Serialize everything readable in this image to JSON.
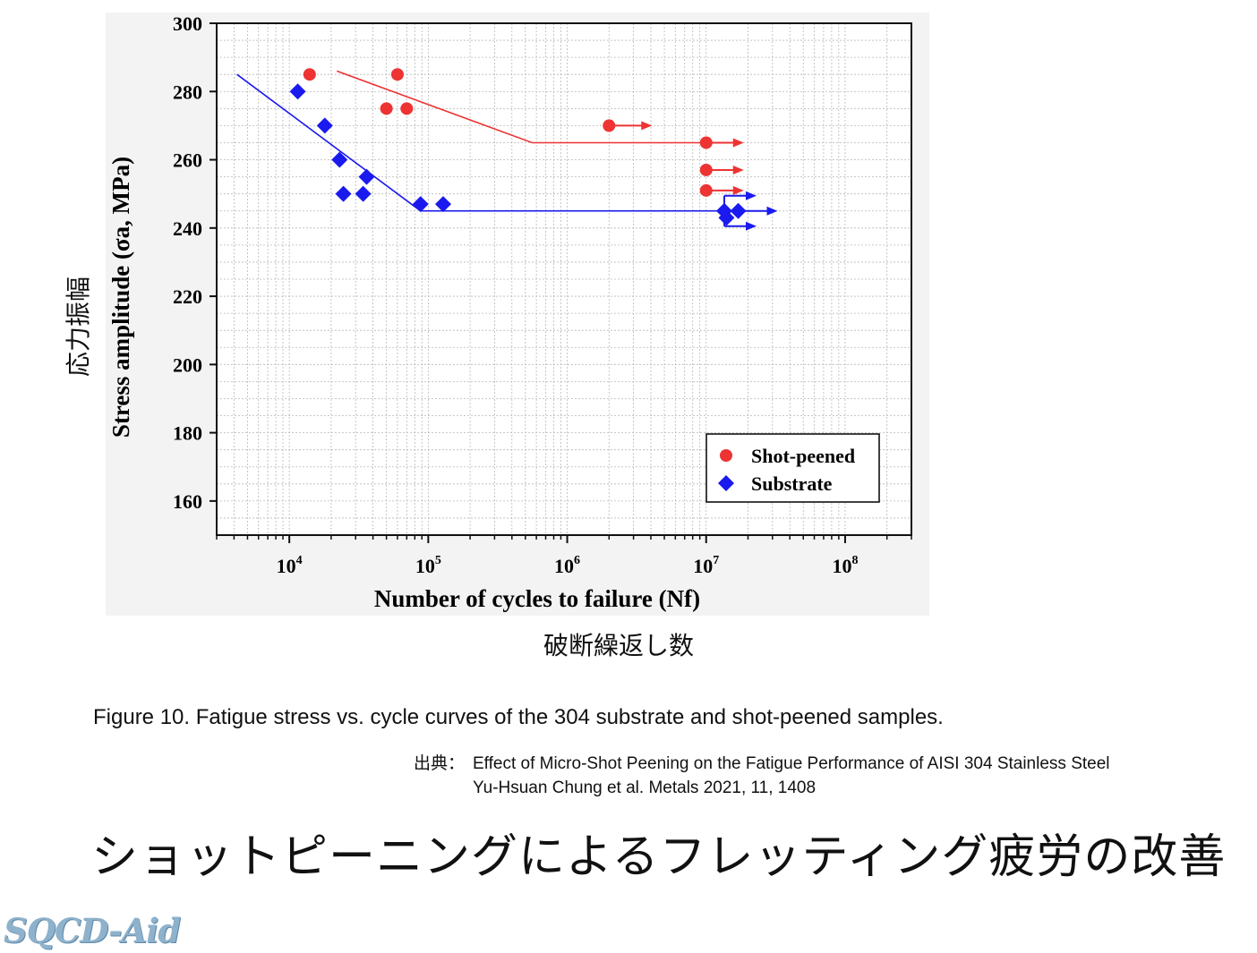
{
  "japanese_labels": {
    "y_axis": "応力振幅",
    "x_axis": "破断繰返し数"
  },
  "caption": "Figure 10. Fatigue stress vs. cycle curves of the 304 substrate and shot-peened samples.",
  "source": {
    "prefix": "出典：",
    "line1": "Effect of Micro-Shot Peening on the Fatigue Performance of AISI 304 Stainless Steel",
    "line2": "Yu-Hsuan  Chung  et al.    Metals 2021, 11, 1408"
  },
  "slide_title": "ショットピーニングによるフレッティング疲労の改善",
  "logo_text": "SQCD-Aid",
  "colors": {
    "shot_peened": "#ee3333",
    "substrate": "#1a1aee",
    "panel_background": "#f3f3f3"
  },
  "chart_data": {
    "type": "scatter",
    "xlabel": "Number of cycles to failure (Nf)",
    "ylabel": "Stress amplitude (σa, MPa)",
    "x_scale": "log",
    "xlim": [
      3000,
      300000000
    ],
    "ylim": [
      150,
      300
    ],
    "x_ticks": [
      {
        "value": 10000,
        "base": "10",
        "exp": "4"
      },
      {
        "value": 100000,
        "base": "10",
        "exp": "5"
      },
      {
        "value": 1000000,
        "base": "10",
        "exp": "6"
      },
      {
        "value": 10000000,
        "base": "10",
        "exp": "7"
      },
      {
        "value": 100000000,
        "base": "10",
        "exp": "8"
      }
    ],
    "y_ticks": [
      160,
      180,
      200,
      220,
      240,
      260,
      280,
      300
    ],
    "grid": true,
    "legend_position": "bottom-right",
    "series": [
      {
        "name": "Shot-peened",
        "marker": "circle",
        "color": "#ee3333",
        "points": [
          {
            "x": 14000,
            "y": 285
          },
          {
            "x": 60000,
            "y": 285
          },
          {
            "x": 50000,
            "y": 275
          },
          {
            "x": 70000,
            "y": 275
          },
          {
            "x": 2000000,
            "y": 270,
            "runout": true
          },
          {
            "x": 10000000,
            "y": 265,
            "runout": true
          },
          {
            "x": 10000000,
            "y": 257,
            "runout": true
          },
          {
            "x": 10000000,
            "y": 251,
            "runout": true
          }
        ],
        "fit_line": [
          {
            "x": 22000,
            "y": 286
          },
          {
            "x": 560000,
            "y": 265
          },
          {
            "x": 10000000,
            "y": 265
          }
        ]
      },
      {
        "name": "Substrate",
        "marker": "diamond",
        "color": "#1a1aee",
        "points": [
          {
            "x": 11500,
            "y": 280
          },
          {
            "x": 18000,
            "y": 270
          },
          {
            "x": 23000,
            "y": 260
          },
          {
            "x": 36000,
            "y": 255
          },
          {
            "x": 24500,
            "y": 250
          },
          {
            "x": 34000,
            "y": 250
          },
          {
            "x": 88000,
            "y": 247
          },
          {
            "x": 128000,
            "y": 247
          },
          {
            "x": 13500000,
            "y": 245,
            "runout": true
          },
          {
            "x": 17000000,
            "y": 245,
            "runout": true
          },
          {
            "x": 14000000,
            "y": 243,
            "runout": true
          }
        ],
        "fit_line": [
          {
            "x": 4200,
            "y": 285
          },
          {
            "x": 88000,
            "y": 245
          },
          {
            "x": 14000000,
            "y": 245
          }
        ]
      }
    ]
  }
}
